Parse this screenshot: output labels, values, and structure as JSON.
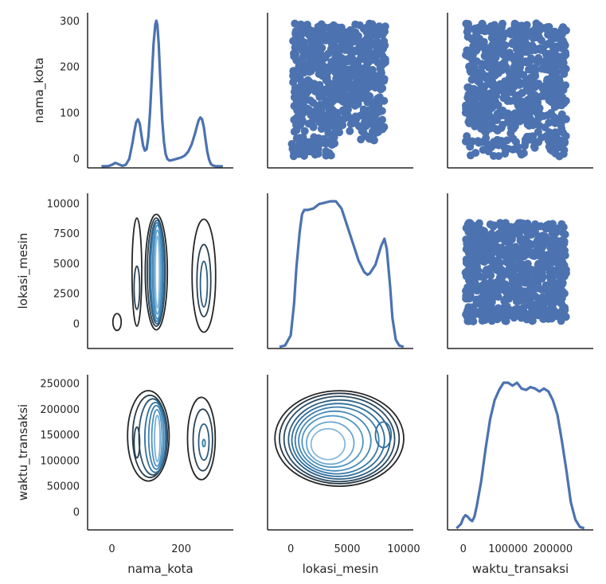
{
  "chart_data": {
    "type": "pairgrid",
    "variables": [
      "nama_kota",
      "lokasi_mesin",
      "waktu_transaksi"
    ],
    "diagonal": "kde",
    "upper": "scatter",
    "lower": "kde-contour",
    "colors": {
      "scatter": "#4c72b0",
      "kde_line": "#4c72b0",
      "contour_dark": "#262626",
      "contour_light": "#a6cce5",
      "axis": "#262626"
    },
    "axes": {
      "nama_kota": {
        "label": "nama_kota",
        "range": [
          -70,
          350
        ],
        "ticks": [
          0,
          200
        ],
        "tick_labels": [
          "0",
          "200"
        ],
        "y_range": [
          -20,
          318
        ],
        "y_ticks": [
          0,
          100,
          200,
          300
        ],
        "y_tick_labels": [
          "0",
          "100",
          "200",
          "300"
        ]
      },
      "lokasi_mesin": {
        "label": "lokasi_mesin",
        "range": [
          -2050,
          10850
        ],
        "ticks": [
          0,
          5000,
          10000
        ],
        "tick_labels": [
          "0",
          "5000",
          "10000"
        ],
        "y_range": [
          -2050,
          10850
        ],
        "y_ticks": [
          0,
          2500,
          5000,
          7500,
          10000
        ],
        "y_tick_labels": [
          "0",
          "2500",
          "5000",
          "7500",
          "10000"
        ]
      },
      "waktu_transaksi": {
        "label": "waktu_transaksi",
        "range": [
          -35000,
          290000
        ],
        "ticks": [
          0,
          100000,
          200000
        ],
        "tick_labels": [
          "0",
          "100000",
          "200000"
        ],
        "y_range": [
          -35000,
          267000
        ],
        "y_ticks": [
          0,
          50000,
          100000,
          150000,
          200000,
          250000
        ],
        "y_tick_labels": [
          "0",
          "50000",
          "100000",
          "150000",
          "200000",
          "250000"
        ]
      }
    },
    "kde_diagonal": {
      "nama_kota": {
        "x": [
          -30,
          -10,
          0,
          10,
          20,
          30,
          40,
          50,
          60,
          65,
          70,
          75,
          80,
          85,
          90,
          95,
          100,
          105,
          110,
          115,
          120,
          125,
          128,
          131,
          135,
          140,
          145,
          150,
          155,
          160,
          165,
          170,
          180,
          190,
          200,
          210,
          220,
          230,
          240,
          245,
          250,
          255,
          260,
          265,
          270,
          275,
          280,
          285,
          290,
          300,
          320
        ],
        "density": [
          0,
          0.5,
          3,
          7,
          4,
          1,
          3,
          15,
          50,
          72,
          90,
          96,
          88,
          65,
          42,
          32,
          35,
          60,
          110,
          180,
          250,
          290,
          298,
          290,
          250,
          170,
          95,
          50,
          25,
          15,
          12,
          12,
          14,
          16,
          18,
          22,
          30,
          45,
          68,
          82,
          94,
          100,
          96,
          80,
          55,
          30,
          14,
          5,
          2,
          0,
          0
        ]
      },
      "lokasi_mesin": {
        "x": [
          -1000,
          -500,
          0,
          300,
          500,
          800,
          1000,
          1200,
          1500,
          2000,
          2500,
          3000,
          3500,
          4000,
          4500,
          5000,
          5500,
          6000,
          6500,
          6800,
          7000,
          7500,
          8000,
          8300,
          8500,
          8800,
          9000,
          9300,
          9600,
          10000
        ],
        "density": [
          0,
          1,
          8,
          30,
          55,
          80,
          92,
          95,
          95,
          96,
          99,
          100,
          101,
          101,
          96,
          84,
          72,
          60,
          52,
          50,
          51,
          57,
          70,
          75,
          68,
          42,
          20,
          5,
          1,
          0
        ]
      },
      "waktu_transaksi": {
        "x": [
          -15000,
          -5000,
          0,
          5000,
          10000,
          15000,
          20000,
          25000,
          30000,
          40000,
          50000,
          60000,
          70000,
          80000,
          90000,
          100000,
          110000,
          120000,
          130000,
          140000,
          150000,
          160000,
          170000,
          180000,
          190000,
          200000,
          210000,
          220000,
          230000,
          240000,
          250000,
          260000,
          270000
        ],
        "density": [
          0,
          3,
          7,
          9,
          8,
          6,
          5,
          8,
          15,
          32,
          55,
          75,
          88,
          95,
          100,
          100,
          98,
          100,
          96,
          95,
          97,
          96,
          94,
          96,
          94,
          88,
          78,
          60,
          40,
          18,
          6,
          1,
          0
        ]
      }
    },
    "contours": {
      "lokasi_mesin|nama_kota": [
        {
          "cx": 128,
          "cy": 4300,
          "rx": 32,
          "ry": 4800,
          "level": 0
        },
        {
          "cx": 128,
          "cy": 4300,
          "rx": 26,
          "ry": 4500,
          "level": 0.15
        },
        {
          "cx": 130,
          "cy": 4300,
          "rx": 22,
          "ry": 4300,
          "level": 0.3
        },
        {
          "cx": 130,
          "cy": 4300,
          "rx": 18,
          "ry": 4100,
          "level": 0.45
        },
        {
          "cx": 131,
          "cy": 4300,
          "rx": 14,
          "ry": 3900,
          "level": 0.6
        },
        {
          "cx": 131,
          "cy": 4300,
          "rx": 10,
          "ry": 3500,
          "level": 0.75
        },
        {
          "cx": 131,
          "cy": 4300,
          "rx": 6,
          "ry": 3000,
          "level": 0.9
        },
        {
          "cx": 72,
          "cy": 4300,
          "rx": 14,
          "ry": 4500,
          "level": 0
        },
        {
          "cx": 72,
          "cy": 3000,
          "rx": 8,
          "ry": 1800,
          "level": 0.15
        },
        {
          "cx": 265,
          "cy": 4000,
          "rx": 34,
          "ry": 4700,
          "level": 0
        },
        {
          "cx": 265,
          "cy": 3600,
          "rx": 20,
          "ry": 3000,
          "level": 0.15
        },
        {
          "cx": 265,
          "cy": 3300,
          "rx": 10,
          "ry": 1900,
          "level": 0.3
        },
        {
          "cx": 15,
          "cy": 150,
          "rx": 12,
          "ry": 700,
          "level": 0
        }
      ],
      "waktu_transaksi|nama_kota": [
        {
          "cx": 105,
          "cy": 148000,
          "rx": 60,
          "ry": 88000,
          "level": 0
        },
        {
          "cx": 110,
          "cy": 147000,
          "rx": 50,
          "ry": 80000,
          "level": 0.12
        },
        {
          "cx": 118,
          "cy": 146000,
          "rx": 40,
          "ry": 74000,
          "level": 0.25
        },
        {
          "cx": 125,
          "cy": 145000,
          "rx": 30,
          "ry": 68000,
          "level": 0.4
        },
        {
          "cx": 128,
          "cy": 145000,
          "rx": 22,
          "ry": 62000,
          "level": 0.55
        },
        {
          "cx": 130,
          "cy": 144000,
          "rx": 15,
          "ry": 55000,
          "level": 0.7
        },
        {
          "cx": 131,
          "cy": 143000,
          "rx": 8,
          "ry": 45000,
          "level": 0.85
        },
        {
          "cx": 72,
          "cy": 135000,
          "rx": 8,
          "ry": 30000,
          "level": 0.15
        },
        {
          "cx": 258,
          "cy": 143000,
          "rx": 40,
          "ry": 80000,
          "level": 0
        },
        {
          "cx": 262,
          "cy": 140000,
          "rx": 28,
          "ry": 60000,
          "level": 0.15
        },
        {
          "cx": 265,
          "cy": 136000,
          "rx": 15,
          "ry": 35000,
          "level": 0.3
        },
        {
          "cx": 265,
          "cy": 134000,
          "rx": 4,
          "ry": 7000,
          "level": 0.5
        }
      ],
      "waktu_transaksi|lokasi_mesin": [
        {
          "cx": 4300,
          "cy": 143000,
          "rx": 5700,
          "ry": 93000,
          "level": 0
        },
        {
          "cx": 4300,
          "cy": 143000,
          "rx": 5300,
          "ry": 88000,
          "level": 0.1
        },
        {
          "cx": 4300,
          "cy": 142000,
          "rx": 4900,
          "ry": 83000,
          "level": 0.2
        },
        {
          "cx": 4300,
          "cy": 141000,
          "rx": 4500,
          "ry": 77000,
          "level": 0.3
        },
        {
          "cx": 4200,
          "cy": 140000,
          "rx": 4100,
          "ry": 71000,
          "level": 0.4
        },
        {
          "cx": 4100,
          "cy": 139000,
          "rx": 3700,
          "ry": 65000,
          "level": 0.5
        },
        {
          "cx": 3900,
          "cy": 138000,
          "rx": 3200,
          "ry": 58000,
          "level": 0.6
        },
        {
          "cx": 3700,
          "cy": 137000,
          "rx": 2700,
          "ry": 50000,
          "level": 0.7
        },
        {
          "cx": 3500,
          "cy": 134000,
          "rx": 2100,
          "ry": 41000,
          "level": 0.8
        },
        {
          "cx": 3300,
          "cy": 132000,
          "rx": 1500,
          "ry": 30000,
          "level": 0.9
        },
        {
          "cx": 8200,
          "cy": 150000,
          "rx": 700,
          "ry": 25000,
          "level": 0.4
        }
      ]
    }
  }
}
